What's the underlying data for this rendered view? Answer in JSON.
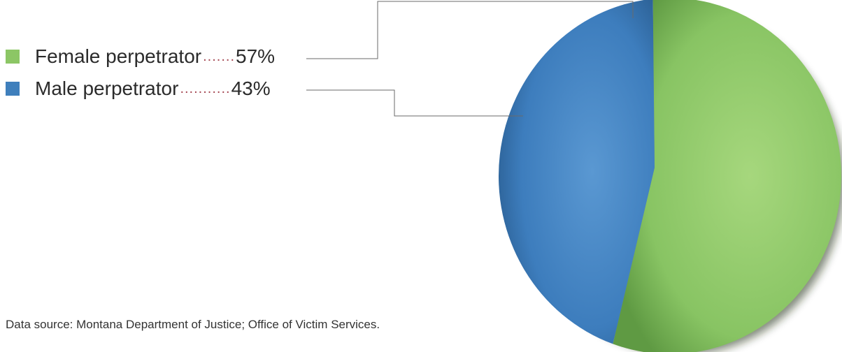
{
  "chart_data": {
    "type": "pie",
    "title": "",
    "slices": [
      {
        "label": "Female perpetrator",
        "value": 57,
        "value_label": "57%",
        "color": "#8cc665"
      },
      {
        "label": "Male perpetrator",
        "value": 43,
        "value_label": "43%",
        "color": "#3f7fbc"
      }
    ],
    "legend_position": "top-left",
    "source": "Data source: Montana Department of Justice; Office of Victim Services."
  }
}
